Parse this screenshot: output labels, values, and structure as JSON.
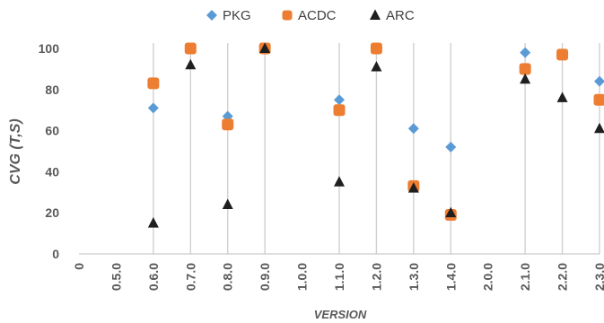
{
  "chart_data": {
    "type": "scatter",
    "title": "",
    "xlabel": "VERSION",
    "ylabel": "CVG (T,S)",
    "categories": [
      "0",
      "0.5.0",
      "0.6.0",
      "0.7.0",
      "0.8.0",
      "0.9.0",
      "1.0.0",
      "1.1.0",
      "1.2.0",
      "1.3.0",
      "1.4.0",
      "2.0.0",
      "2.1.0",
      "2.2.0",
      "2.3.0"
    ],
    "ylim": [
      0,
      100
    ],
    "yticks": [
      "0",
      "20",
      "40",
      "60",
      "80",
      "100"
    ],
    "legend_position": "top",
    "grid": "vertical lines at versions with data",
    "series": [
      {
        "name": "PKG",
        "marker": "diamond",
        "color": "#5b9bd5",
        "values": [
          null,
          null,
          71,
          100,
          67,
          100,
          null,
          75,
          100,
          61,
          52,
          null,
          98,
          97,
          84
        ]
      },
      {
        "name": "ACDC",
        "marker": "square",
        "color": "#ed7d31",
        "values": [
          null,
          null,
          83,
          100,
          63,
          100,
          null,
          70,
          100,
          33,
          19,
          null,
          90,
          97,
          75
        ]
      },
      {
        "name": "ARC",
        "marker": "triangle",
        "color": "#1f1f1f",
        "values": [
          null,
          null,
          15,
          92,
          24,
          100,
          null,
          35,
          91,
          32,
          20,
          null,
          85,
          76,
          61
        ]
      }
    ]
  }
}
